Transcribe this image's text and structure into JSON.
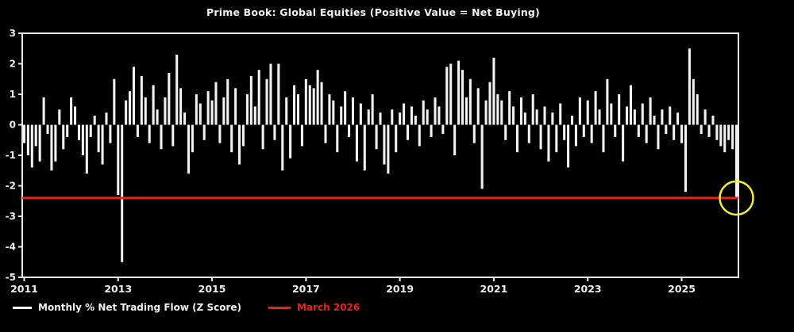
{
  "chart": {
    "legend_series": "Monthly % Net Trading Flow (Z Score)",
    "legend_reference": "March 2026",
    "series_color": "#f5f5f5",
    "reference_color": "#e3261d"
  },
  "chart_data": {
    "type": "bar",
    "title": "Prime Book: Global Equities (Positive Value = Net Buying)",
    "xlabel": "",
    "ylabel": "",
    "x_start": "2011-01",
    "x_end": "2026-03",
    "frequency": "monthly",
    "ylim": [
      -5,
      3
    ],
    "y_ticks": [
      3,
      2,
      1,
      0,
      -1,
      -2,
      -3,
      -4,
      -5
    ],
    "x_ticks": [
      {
        "label": "2011",
        "month_index": 0
      },
      {
        "label": "2013",
        "month_index": 24
      },
      {
        "label": "2015",
        "month_index": 48
      },
      {
        "label": "2017",
        "month_index": 72
      },
      {
        "label": "2019",
        "month_index": 96
      },
      {
        "label": "2021",
        "month_index": 120
      },
      {
        "label": "2023",
        "month_index": 144
      },
      {
        "label": "2025",
        "month_index": 168
      }
    ],
    "bar_color": "#f2f2f2",
    "background": "#000000",
    "grid": false,
    "legend_position": "bottom-left",
    "reference_line": {
      "value": -2.4,
      "color": "#e3261d",
      "label": "March 2026"
    },
    "highlight": {
      "month_index": 182,
      "value": -2.4,
      "shape": "circle",
      "color": "#f3ef3a",
      "radius": 21
    },
    "values": [
      -0.6,
      -1.0,
      -1.4,
      -0.7,
      -1.2,
      0.9,
      -0.3,
      -1.5,
      -1.2,
      0.5,
      -0.8,
      -0.4,
      0.9,
      0.6,
      -0.5,
      -1.0,
      -1.6,
      -0.4,
      0.3,
      -0.9,
      -1.3,
      0.4,
      -0.6,
      1.5,
      -2.3,
      -4.5,
      0.8,
      1.1,
      1.9,
      -0.4,
      1.6,
      0.9,
      -0.6,
      1.3,
      0.5,
      -0.8,
      0.9,
      1.7,
      -0.7,
      2.3,
      1.2,
      0.4,
      -1.6,
      -0.9,
      1.0,
      0.7,
      -0.5,
      1.1,
      0.8,
      1.4,
      -0.6,
      0.9,
      1.5,
      -0.9,
      1.2,
      -1.3,
      -0.7,
      1.0,
      1.6,
      0.6,
      1.8,
      -0.8,
      1.5,
      2.0,
      -0.5,
      2.0,
      -1.5,
      0.9,
      -1.1,
      1.3,
      1.0,
      -0.7,
      1.5,
      1.3,
      1.2,
      1.8,
      1.4,
      -0.6,
      1.0,
      0.8,
      -0.9,
      0.6,
      1.1,
      -0.4,
      0.9,
      -1.2,
      0.7,
      -1.5,
      0.5,
      1.0,
      -0.8,
      0.4,
      -1.3,
      -1.6,
      0.5,
      -0.9,
      0.4,
      0.7,
      -0.5,
      0.6,
      0.3,
      -0.7,
      0.8,
      0.5,
      -0.4,
      0.9,
      0.6,
      -0.3,
      1.9,
      2.0,
      -1.0,
      2.1,
      1.8,
      0.9,
      1.5,
      -0.6,
      1.2,
      -2.1,
      0.8,
      1.4,
      2.2,
      1.0,
      0.8,
      -0.5,
      1.1,
      0.6,
      -0.9,
      0.9,
      0.4,
      -0.6,
      1.0,
      0.5,
      -0.8,
      0.6,
      -1.2,
      0.4,
      -0.9,
      0.7,
      -0.5,
      -1.4,
      0.3,
      -0.7,
      0.9,
      -0.4,
      0.8,
      -0.6,
      1.1,
      0.5,
      -0.9,
      1.5,
      0.7,
      -0.4,
      1.0,
      -1.2,
      0.6,
      1.3,
      0.5,
      -0.4,
      0.7,
      -0.6,
      0.9,
      0.3,
      -0.8,
      0.5,
      -0.3,
      0.6,
      -0.5,
      0.4,
      -0.6,
      -2.2,
      2.5,
      1.5,
      1.0,
      -0.3,
      0.5,
      -0.4,
      0.3,
      -0.5,
      -0.7,
      -0.9,
      -0.5,
      -0.8,
      -2.4
    ]
  }
}
